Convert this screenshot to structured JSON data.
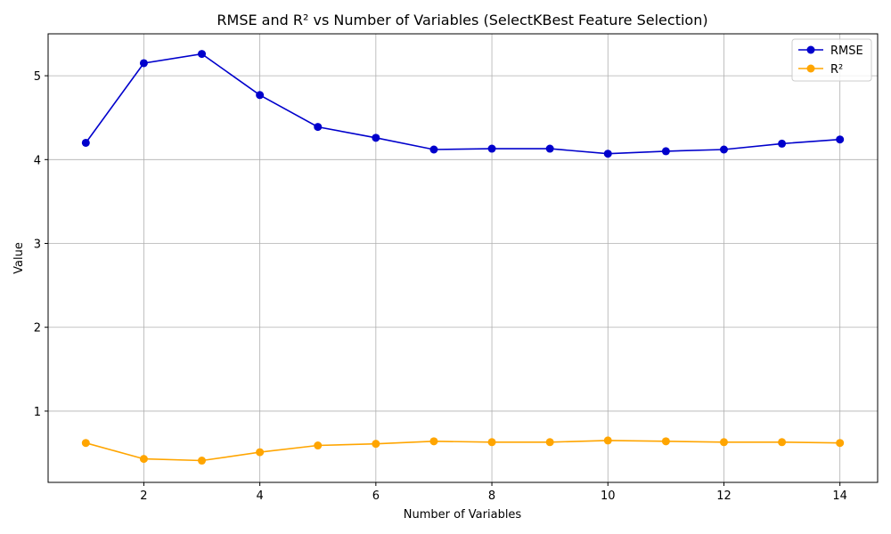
{
  "chart_data": {
    "type": "line",
    "title": "RMSE and R² vs Number of Variables (SelectKBest Feature Selection)",
    "xlabel": "Number of Variables",
    "ylabel": "Value",
    "x": [
      1,
      2,
      3,
      4,
      5,
      6,
      7,
      8,
      9,
      10,
      11,
      12,
      13,
      14
    ],
    "series": [
      {
        "name": "RMSE",
        "color": "#0000cc",
        "values": [
          4.2,
          5.15,
          5.26,
          4.77,
          4.39,
          4.26,
          4.12,
          4.13,
          4.13,
          4.07,
          4.1,
          4.12,
          4.19,
          4.24
        ]
      },
      {
        "name": "R²",
        "color": "#ffa500",
        "values": [
          0.62,
          0.43,
          0.41,
          0.51,
          0.59,
          0.61,
          0.64,
          0.63,
          0.63,
          0.65,
          0.64,
          0.63,
          0.63,
          0.62
        ]
      }
    ],
    "xlim": [
      0.35,
      14.65
    ],
    "ylim": [
      0.15,
      5.5
    ],
    "xticks": [
      2,
      4,
      6,
      8,
      10,
      12,
      14
    ],
    "yticks": [
      1,
      2,
      3,
      4,
      5
    ],
    "grid": true,
    "legend_position": "top-right"
  }
}
